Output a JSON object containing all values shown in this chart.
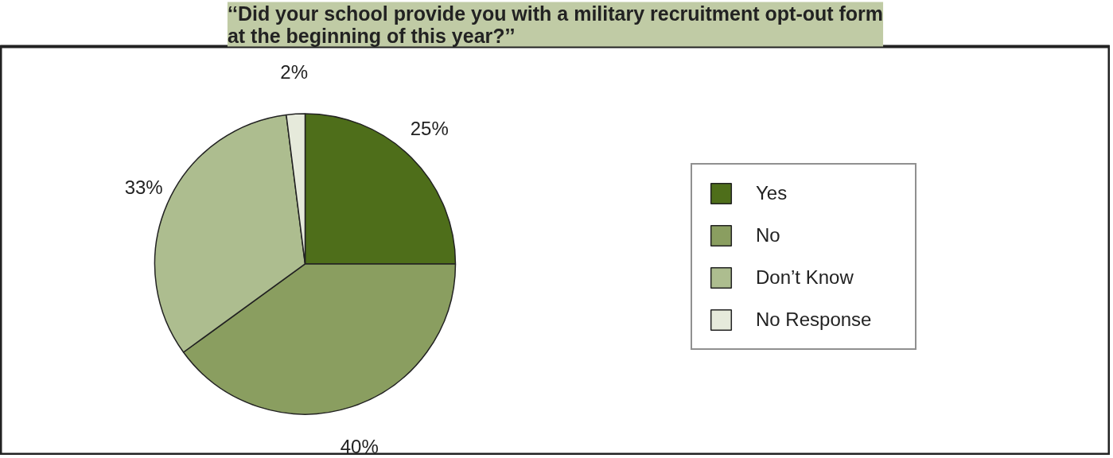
{
  "chart_data": {
    "type": "pie",
    "title": "‘‘Did your school provide you with a military recruitment opt-out form\nat the beginning of this year?’’",
    "categories": [
      "Yes",
      "No",
      "Don’t Know",
      "No Response"
    ],
    "values": [
      25,
      40,
      33,
      2
    ],
    "colors": [
      "#4e6e1a",
      "#8a9e60",
      "#adbd8f",
      "#e6eadb"
    ],
    "value_labels": [
      "25%",
      "40%",
      "33%",
      "2%"
    ],
    "legend": "right"
  }
}
